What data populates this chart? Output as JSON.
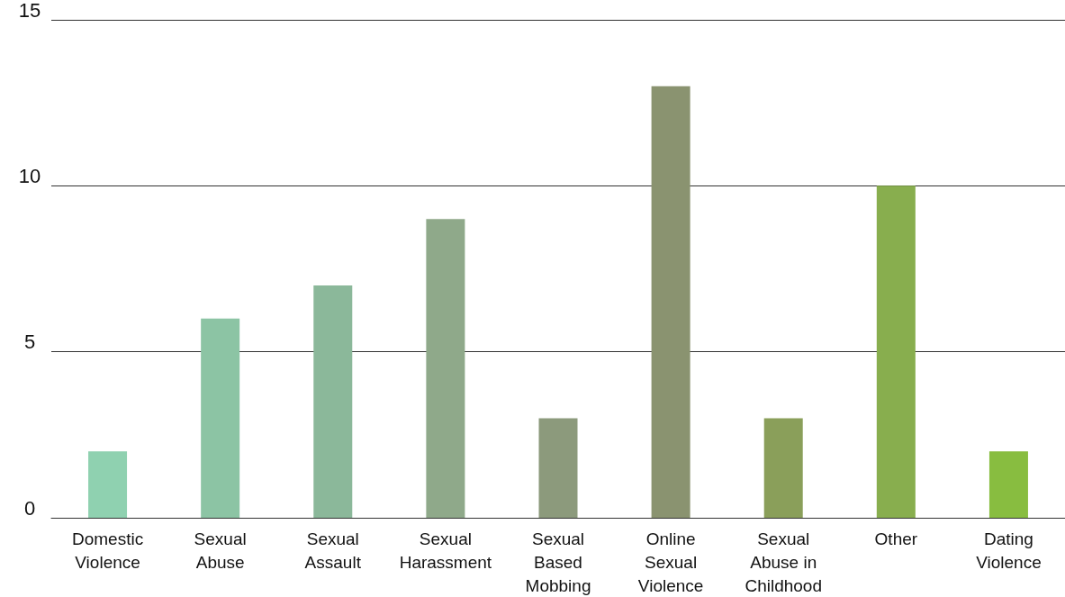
{
  "chart_data": {
    "type": "bar",
    "categories": [
      "Domestic Violence",
      "Sexual Abuse",
      "Sexual Assault",
      "Sexual Harassment",
      "Sexual Based Mobbing",
      "Online Sexual Violence",
      "Sexual Abuse in Childhood",
      "Other",
      "Dating Violence"
    ],
    "values": [
      2,
      6,
      7,
      9,
      3,
      13,
      3,
      10,
      2
    ],
    "colors": [
      "#8fd1b0",
      "#8cc4a4",
      "#8bb89a",
      "#8fa98a",
      "#8c9a7c",
      "#8a9370",
      "#8a9f5a",
      "#88ae4e",
      "#88bd40"
    ],
    "ylim": [
      0,
      15
    ],
    "yticks": [
      0,
      5,
      10,
      15
    ],
    "grid": "y"
  }
}
